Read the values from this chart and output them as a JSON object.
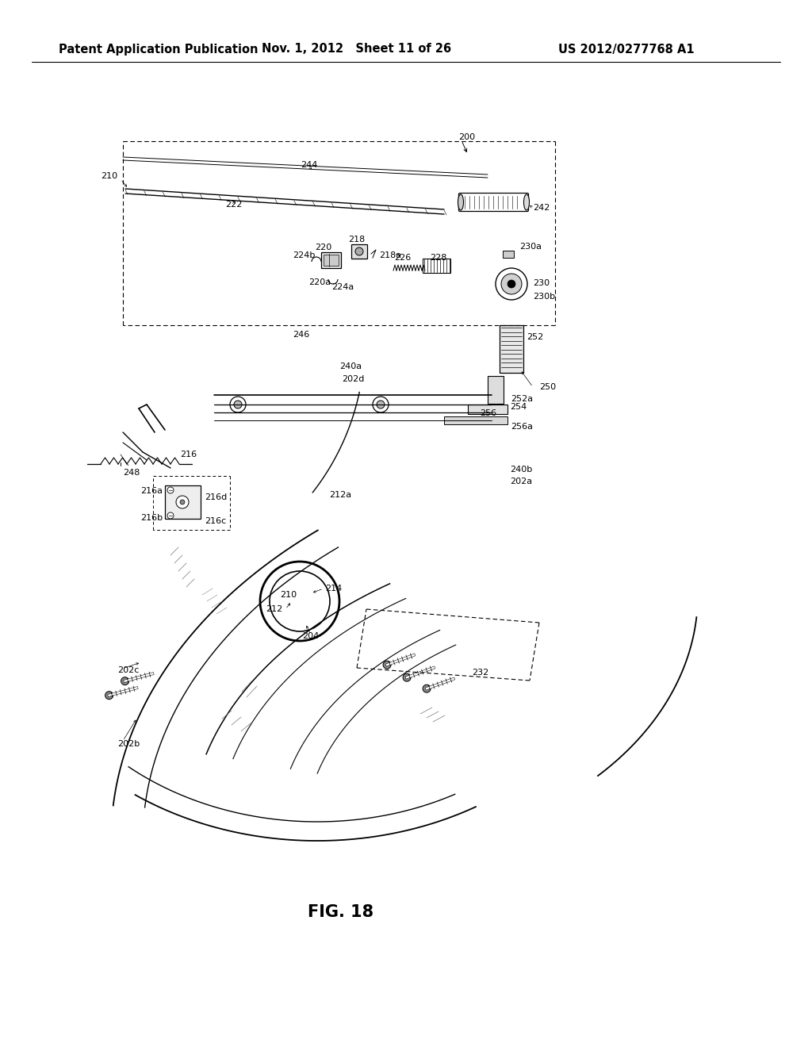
{
  "header_left": "Patent Application Publication",
  "header_middle": "Nov. 1, 2012   Sheet 11 of 26",
  "header_right": "US 2012/0277768 A1",
  "figure_label": "FIG. 18",
  "bg": "#ffffff",
  "header_fs": 10.5,
  "fig_label_fs": 15,
  "label_fs": 8.0
}
